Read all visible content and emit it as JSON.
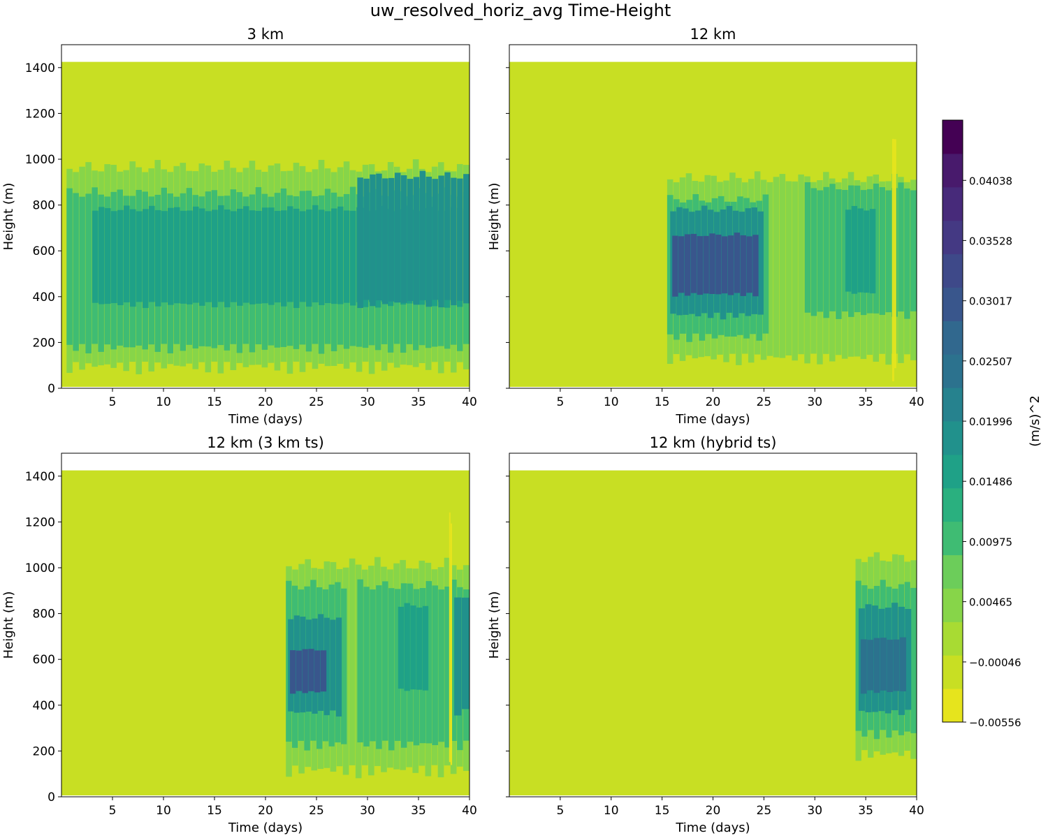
{
  "figure": {
    "title": "uw_resolved_horiz_avg Time-Height"
  },
  "chart_data": [
    {
      "type": "heatmap",
      "title": "3 km",
      "xlabel": "Time (days)",
      "ylabel": "Height (m)",
      "xlim": [
        0,
        40
      ],
      "ylim": [
        0,
        1500
      ],
      "xticks": [
        5,
        10,
        15,
        20,
        25,
        30,
        35,
        40
      ],
      "yticks": [
        0,
        200,
        400,
        600,
        800,
        1000,
        1200,
        1400
      ],
      "data_top_m": 1425,
      "background_level": -0.00046,
      "regions": [
        {
          "t_start": 0.5,
          "t_end": 40,
          "z_bottom": 60,
          "z_top": 1000,
          "level": 0.00465
        },
        {
          "t_start": 0.5,
          "t_end": 40,
          "z_bottom": 150,
          "z_top": 880,
          "level": 0.00975
        },
        {
          "t_start": 3,
          "t_end": 40,
          "z_bottom": 350,
          "z_top": 800,
          "level": 0.01486
        },
        {
          "t_start": 29,
          "t_end": 40,
          "z_bottom": 350,
          "z_top": 950,
          "level": 0.01996
        }
      ]
    },
    {
      "type": "heatmap",
      "title": "12 km",
      "xlabel": "Time (days)",
      "ylabel": "Height (m)",
      "xlim": [
        0,
        40
      ],
      "ylim": [
        0,
        1500
      ],
      "xticks": [
        5,
        10,
        15,
        20,
        25,
        30,
        35,
        40
      ],
      "yticks": [
        0,
        200,
        400,
        600,
        800,
        1000,
        1200,
        1400
      ],
      "show_ytick_labels": false,
      "data_top_m": 1425,
      "background_level": -0.00046,
      "regions": [
        {
          "t_start": 15.5,
          "t_end": 40,
          "z_bottom": 100,
          "z_top": 950,
          "level": 0.00465
        },
        {
          "t_start": 15.5,
          "t_end": 25.5,
          "z_bottom": 200,
          "z_top": 850,
          "level": 0.00975
        },
        {
          "t_start": 15.8,
          "t_end": 25,
          "z_bottom": 300,
          "z_top": 800,
          "level": 0.01996
        },
        {
          "t_start": 16,
          "t_end": 24.5,
          "z_bottom": 400,
          "z_top": 680,
          "level": 0.03017
        },
        {
          "t_start": 29,
          "t_end": 40,
          "z_bottom": 300,
          "z_top": 900,
          "level": 0.00975
        },
        {
          "t_start": 33,
          "t_end": 36,
          "z_bottom": 400,
          "z_top": 800,
          "level": 0.01486
        },
        {
          "t_start": 37.6,
          "t_end": 38.0,
          "z_bottom": 20,
          "z_top": 1150,
          "level": -0.00556
        }
      ]
    },
    {
      "type": "heatmap",
      "title": "12 km (3 km ts)",
      "xlabel": "Time (days)",
      "ylabel": "Height (m)",
      "xlim": [
        0,
        40
      ],
      "ylim": [
        0,
        1500
      ],
      "xticks": [
        5,
        10,
        15,
        20,
        25,
        30,
        35,
        40
      ],
      "yticks": [
        0,
        200,
        400,
        600,
        800,
        1000,
        1200,
        1400
      ],
      "data_top_m": 1425,
      "background_level": -0.00046,
      "regions": [
        {
          "t_start": 22,
          "t_end": 40,
          "z_bottom": 80,
          "z_top": 1050,
          "level": 0.00465
        },
        {
          "t_start": 22,
          "t_end": 28,
          "z_bottom": 200,
          "z_top": 950,
          "level": 0.00975
        },
        {
          "t_start": 22.2,
          "t_end": 27.5,
          "z_bottom": 350,
          "z_top": 800,
          "level": 0.01996
        },
        {
          "t_start": 22.4,
          "t_end": 26,
          "z_bottom": 450,
          "z_top": 650,
          "level": 0.03017
        },
        {
          "t_start": 29,
          "t_end": 40,
          "z_bottom": 200,
          "z_top": 950,
          "level": 0.00975
        },
        {
          "t_start": 33,
          "t_end": 36,
          "z_bottom": 450,
          "z_top": 850,
          "level": 0.01486
        },
        {
          "t_start": 38.5,
          "t_end": 40,
          "z_bottom": 350,
          "z_top": 900,
          "level": 0.01996
        },
        {
          "t_start": 38.0,
          "t_end": 38.3,
          "z_bottom": 100,
          "z_top": 1250,
          "level": -0.00556
        }
      ]
    },
    {
      "type": "heatmap",
      "title": "12 km (hybrid ts)",
      "xlabel": "Time (days)",
      "ylabel": "Height (m)",
      "xlim": [
        0,
        40
      ],
      "ylim": [
        0,
        1500
      ],
      "xticks": [
        5,
        10,
        15,
        20,
        25,
        30,
        35,
        40
      ],
      "yticks": [
        0,
        200,
        400,
        600,
        800,
        1000,
        1200,
        1400
      ],
      "show_ytick_labels": false,
      "data_top_m": 1425,
      "background_level": -0.00046,
      "regions": [
        {
          "t_start": 34,
          "t_end": 40,
          "z_bottom": 150,
          "z_top": 1080,
          "level": 0.00465
        },
        {
          "t_start": 34,
          "t_end": 40,
          "z_bottom": 250,
          "z_top": 950,
          "level": 0.00975
        },
        {
          "t_start": 34.3,
          "t_end": 39.5,
          "z_bottom": 350,
          "z_top": 850,
          "level": 0.01996
        },
        {
          "t_start": 34.5,
          "t_end": 39,
          "z_bottom": 450,
          "z_top": 700,
          "level": 0.02507
        }
      ]
    }
  ],
  "colorbar": {
    "label": "(m/s)^2",
    "tick_labels": [
      "0.04038",
      "0.03528",
      "0.03017",
      "0.02507",
      "0.01996",
      "0.01486",
      "0.00975",
      "0.00465",
      "−0.00046",
      "−0.00556"
    ],
    "tick_values": [
      0.04038,
      0.03528,
      0.03017,
      0.02507,
      0.01996,
      0.01486,
      0.00975,
      0.00465,
      -0.00046,
      -0.00556
    ],
    "levels": [
      -0.00556,
      -0.00046,
      0.00465,
      0.00975,
      0.01486,
      0.01996,
      0.02507,
      0.03017,
      0.03528,
      0.04038,
      0.04549
    ],
    "colors": [
      "#e6e41d",
      "#c8df23",
      "#a8db33",
      "#87d549",
      "#6ccd5a",
      "#3fbc73",
      "#2ab07f",
      "#1fa187",
      "#21918c",
      "#26828e",
      "#2c728e",
      "#31688e",
      "#39568c",
      "#3e4989",
      "#443983",
      "#472a7a",
      "#481a6c",
      "#440154"
    ]
  }
}
